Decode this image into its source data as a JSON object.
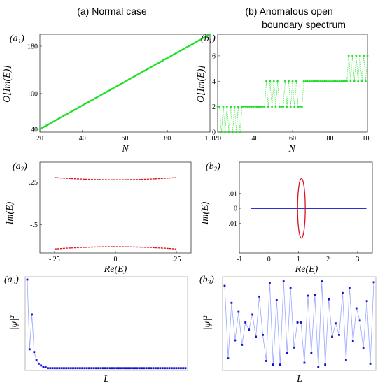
{
  "headings": {
    "left": "(a) Normal case",
    "right_line1": "(b) Anomalous open",
    "right_line2": "boundary spectrum"
  },
  "colors": {
    "green": "#22e02a",
    "red": "#d8141e",
    "blue": "#1010d0",
    "lightblue": "#9aa8ff"
  },
  "chart_data": [
    {
      "id": "a1",
      "panel_label": "(a1)",
      "type": "line",
      "xlabel": "N",
      "ylabel": "O[Im(E)]",
      "xlim": [
        20,
        100
      ],
      "ylim": [
        35,
        200
      ],
      "xticks": [
        20,
        40,
        60,
        80,
        100
      ],
      "yticks": [
        40,
        100,
        180
      ],
      "series": [
        {
          "color": "green",
          "x_range": [
            20,
            100
          ],
          "y_range": [
            40,
            200
          ],
          "points": 81
        }
      ]
    },
    {
      "id": "b1",
      "panel_label": "(b1)",
      "type": "line",
      "xlabel": "N",
      "ylabel": "O[Im(E)]",
      "xlim": [
        20,
        100
      ],
      "ylim": [
        0,
        7.7
      ],
      "xticks": [
        20,
        40,
        60,
        80,
        100
      ],
      "yticks": [
        0,
        2,
        4,
        6
      ],
      "segments": [
        {
          "x": [
            20,
            21
          ],
          "y": 2
        },
        {
          "x": [
            22,
            33
          ],
          "alternating": [
            0,
            2
          ]
        },
        {
          "x": [
            34,
            44
          ],
          "y": 2
        },
        {
          "x": [
            45,
            52
          ],
          "alternating": [
            2,
            4
          ]
        },
        {
          "x": [
            53,
            54
          ],
          "y": 2
        },
        {
          "x": [
            55,
            62
          ],
          "alternating": [
            2,
            4
          ]
        },
        {
          "x": [
            63,
            65
          ],
          "y": 2
        },
        {
          "x": [
            66,
            88
          ],
          "y": 4
        },
        {
          "x": [
            89,
            100
          ],
          "alternating": [
            4,
            6
          ]
        }
      ]
    },
    {
      "id": "a2",
      "panel_label": "(a2)",
      "type": "line",
      "xlabel": "Re(E)",
      "ylabel": "Im(E)",
      "xlim": [
        -0.31,
        0.31
      ],
      "ylim": [
        -1.0,
        0.6
      ],
      "xticks": [
        -0.25,
        0,
        0.25
      ],
      "yticks": [
        0.25,
        -0.5
      ],
      "series": [
        {
          "color": "red",
          "x_range": [
            -0.25,
            0.25
          ],
          "y_edge": 0.33,
          "y_center": 0.29
        },
        {
          "color": "red",
          "x_range": [
            -0.25,
            0.25
          ],
          "y_edge": -0.93,
          "y_center": -0.89
        }
      ]
    },
    {
      "id": "b2",
      "panel_label": "(b2)",
      "type": "line",
      "xlabel": "Re(E)",
      "ylabel": "Im(E)",
      "xlim": [
        -1,
        3.5
      ],
      "ylim": [
        -0.03,
        0.031
      ],
      "xticks": [
        -1,
        0,
        1,
        2,
        3
      ],
      "yticks": [
        0.01,
        0,
        -0.01
      ],
      "series": [
        {
          "color": "blue",
          "kind": "line",
          "x_range": [
            -0.6,
            3.3
          ],
          "y": 0
        },
        {
          "color": "red",
          "kind": "ellipse",
          "center": [
            1.1,
            0
          ],
          "rx": 0.13,
          "ry": 0.02
        }
      ]
    },
    {
      "id": "a3",
      "panel_label": "(a3)",
      "type": "line",
      "xlabel": "L",
      "ylabel": "|ψ|²",
      "ylim": [
        0,
        1
      ],
      "values": [
        1.0,
        0.22,
        0.61,
        0.19,
        0.1,
        0.06,
        0.04,
        0.02,
        0.02,
        0.01,
        0.01,
        0.01,
        0.01,
        0.01,
        0.01,
        0.01,
        0.01,
        0.01,
        0.01,
        0.01,
        0.01,
        0.01,
        0.01,
        0.01,
        0.01,
        0.01,
        0.01,
        0.01,
        0.01,
        0.01,
        0.01,
        0.01,
        0.01,
        0.01,
        0.01,
        0.01,
        0.01,
        0.01,
        0.01,
        0.01,
        0.01,
        0.01,
        0.01,
        0.01,
        0.01,
        0.01,
        0.01,
        0.01,
        0.01,
        0.01,
        0.01,
        0.01,
        0.01,
        0.01,
        0.01,
        0.01,
        0.01,
        0.01,
        0.01,
        0.01,
        0.01,
        0.01,
        0.01,
        0.01,
        0.01,
        0.01,
        0.01,
        0.01,
        0.01,
        0.01
      ]
    },
    {
      "id": "b3",
      "panel_label": "(b3)",
      "type": "line",
      "xlabel": "L",
      "ylabel": "|ψ|²",
      "ylim": [
        0,
        1
      ],
      "values": [
        0.93,
        0.12,
        0.74,
        0.32,
        0.64,
        0.27,
        0.52,
        0.44,
        0.61,
        0.36,
        0.81,
        0.38,
        0.09,
        0.96,
        0.05,
        0.77,
        0.05,
        0.98,
        0.18,
        0.91,
        0.24,
        0.52,
        0.52,
        0.07,
        0.82,
        0.18,
        0.83,
        0.02,
        0.98,
        0.05,
        0.78,
        0.36,
        0.51,
        0.38,
        0.85,
        0.1,
        0.91,
        0.31,
        0.68,
        0.54,
        0.23,
        0.76,
        0.06,
        0.97
      ]
    }
  ]
}
